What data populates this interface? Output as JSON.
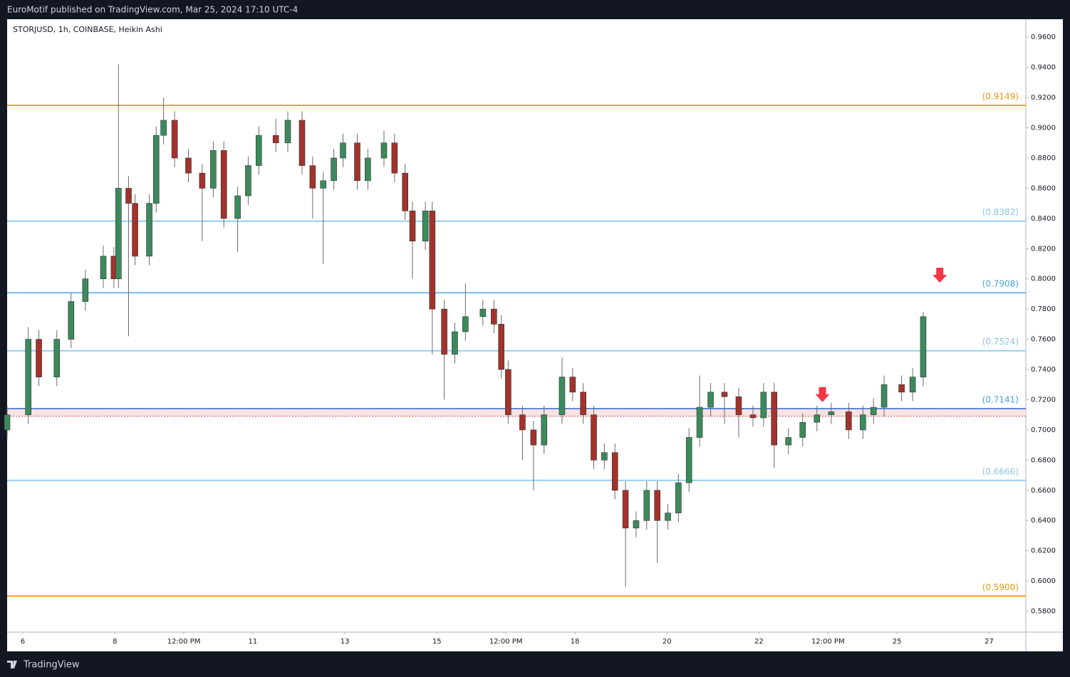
{
  "chart_data": {
    "type": "candlestick",
    "header": "EuroMotif published on TradingView.com, Mar 25, 2024 17:10 UTC-4",
    "title": "STORJUSD, 1h, COINBASE, Heikin Ashi",
    "brand": "TradingView",
    "up_color": "#3c8a5c",
    "down_color": "#a3322c",
    "xlim": [
      5.66,
      27.8
    ],
    "xticks": [
      6,
      8,
      {
        "value": 9.5,
        "label": "12:00 PM"
      },
      11,
      13,
      15,
      {
        "value": 16.5,
        "label": "12:00 PM"
      },
      18,
      20,
      22,
      {
        "value": 23.5,
        "label": "12:00 PM"
      },
      25,
      27
    ],
    "ylim": [
      0.5661,
      0.9719
    ],
    "yticks": [
      {
        "value": 0.96,
        "label": "0.9600"
      },
      {
        "value": 0.94,
        "label": "0.9400"
      },
      {
        "value": 0.92,
        "label": "0.9200"
      },
      {
        "value": 0.9,
        "label": "0.9000"
      },
      {
        "value": 0.88,
        "label": "0.8800"
      },
      {
        "value": 0.86,
        "label": "0.8600"
      },
      {
        "value": 0.84,
        "label": "0.8400"
      },
      {
        "value": 0.82,
        "label": "0.8200"
      },
      {
        "value": 0.8,
        "label": "0.8000"
      },
      {
        "value": 0.78,
        "label": "0.7800"
      },
      {
        "value": 0.76,
        "label": "0.7600"
      },
      {
        "value": 0.74,
        "label": "0.7400"
      },
      {
        "value": 0.72,
        "label": "0.7200"
      },
      {
        "value": 0.7,
        "label": "0.7000"
      },
      {
        "value": 0.68,
        "label": "0.6800"
      },
      {
        "value": 0.66,
        "label": "0.6600"
      },
      {
        "value": 0.64,
        "label": "0.6400"
      },
      {
        "value": 0.62,
        "label": "0.6200"
      },
      {
        "value": 0.6,
        "label": "0.6000"
      },
      {
        "value": 0.58,
        "label": "0.5800"
      }
    ],
    "grid": false,
    "levels": {
      "values": [
        0.9149,
        0.8382,
        0.7908,
        0.7524,
        0.7141,
        0.6666,
        0.59
      ],
      "value_labels": [
        "(0.9149)",
        "(0.8382)",
        "(0.7908)",
        "(0.7524)",
        "(0.7141)",
        "(0.6666)",
        "(0.5900)"
      ],
      "colors": [
        "#f59d0e",
        "#8ccbed",
        "#5fb3e8",
        "#8ccbed",
        "#4a7ad8",
        "#8ccbed",
        "#f59d0e"
      ],
      "label_colors": [
        "#e39a10",
        "#8fc4e6",
        "#4aa3e0",
        "#8fc4e6",
        "#4aa3e0",
        "#8fc4e6",
        "#e39a10"
      ]
    },
    "zone": {
      "values": [
        0.709,
        0.7141
      ],
      "color": "#f6d6d6",
      "edge_color": "#d04a3a"
    },
    "markers": {
      "x": [
        25.93,
        23.38
      ],
      "y": [
        0.797,
        0.718
      ],
      "color": "#f23645"
    },
    "x": [
      5.66,
      6.12,
      6.35,
      6.74,
      7.05,
      7.36,
      7.75,
      7.98,
      8.08,
      8.3,
      8.44,
      8.75,
      8.9,
      9.06,
      9.3,
      9.6,
      9.9,
      10.14,
      10.37,
      10.67,
      10.9,
      11.13,
      11.5,
      11.76,
      12.07,
      12.3,
      12.53,
      12.76,
      12.96,
      13.27,
      13.5,
      13.85,
      14.08,
      14.31,
      14.47,
      14.75,
      14.9,
      15.16,
      15.39,
      15.62,
      16.0,
      16.24,
      16.4,
      16.55,
      16.86,
      17.1,
      17.33,
      17.72,
      17.95,
      18.18,
      18.41,
      18.64,
      18.87,
      19.1,
      19.33,
      19.56,
      19.79,
      20.02,
      20.25,
      20.48,
      20.71,
      20.95,
      21.25,
      21.56,
      21.87,
      22.1,
      22.33,
      22.64,
      22.95,
      23.26,
      23.57,
      23.95,
      24.26,
      24.49,
      24.72,
      25.1,
      25.34,
      25.57
    ],
    "open": [
      0.7,
      0.71,
      0.76,
      0.735,
      0.76,
      0.785,
      0.8,
      0.815,
      0.8,
      0.86,
      0.85,
      0.815,
      0.85,
      0.895,
      0.905,
      0.88,
      0.87,
      0.86,
      0.885,
      0.84,
      0.855,
      0.875,
      0.895,
      0.89,
      0.905,
      0.875,
      0.86,
      0.865,
      0.88,
      0.89,
      0.865,
      0.88,
      0.89,
      0.87,
      0.845,
      0.825,
      0.845,
      0.78,
      0.75,
      0.765,
      0.775,
      0.78,
      0.77,
      0.74,
      0.71,
      0.7,
      0.69,
      0.71,
      0.735,
      0.725,
      0.71,
      0.68,
      0.685,
      0.66,
      0.635,
      0.64,
      0.66,
      0.64,
      0.645,
      0.665,
      0.695,
      0.715,
      0.725,
      0.722,
      0.71,
      0.708,
      0.725,
      0.69,
      0.695,
      0.705,
      0.71,
      0.712,
      0.7,
      0.71,
      0.715,
      0.73,
      0.725,
      0.735
    ],
    "high": [
      0.716,
      0.768,
      0.766,
      0.766,
      0.791,
      0.806,
      0.822,
      0.821,
      0.942,
      0.868,
      0.856,
      0.856,
      0.901,
      0.92,
      0.911,
      0.886,
      0.876,
      0.891,
      0.891,
      0.861,
      0.881,
      0.901,
      0.906,
      0.911,
      0.911,
      0.881,
      0.871,
      0.886,
      0.896,
      0.896,
      0.886,
      0.898,
      0.896,
      0.876,
      0.851,
      0.851,
      0.851,
      0.786,
      0.771,
      0.797,
      0.786,
      0.786,
      0.776,
      0.746,
      0.716,
      0.706,
      0.716,
      0.748,
      0.741,
      0.731,
      0.716,
      0.691,
      0.691,
      0.666,
      0.646,
      0.666,
      0.666,
      0.651,
      0.671,
      0.701,
      0.736,
      0.731,
      0.731,
      0.728,
      0.716,
      0.731,
      0.731,
      0.701,
      0.711,
      0.716,
      0.718,
      0.718,
      0.716,
      0.721,
      0.736,
      0.736,
      0.741,
      0.778
    ],
    "low": [
      0.694,
      0.704,
      0.729,
      0.729,
      0.754,
      0.779,
      0.794,
      0.794,
      0.794,
      0.762,
      0.809,
      0.809,
      0.844,
      0.889,
      0.874,
      0.864,
      0.825,
      0.854,
      0.834,
      0.818,
      0.849,
      0.869,
      0.884,
      0.884,
      0.869,
      0.84,
      0.81,
      0.859,
      0.874,
      0.859,
      0.859,
      0.874,
      0.864,
      0.839,
      0.8,
      0.819,
      0.75,
      0.72,
      0.744,
      0.759,
      0.769,
      0.764,
      0.734,
      0.704,
      0.68,
      0.66,
      0.684,
      0.704,
      0.719,
      0.704,
      0.674,
      0.674,
      0.654,
      0.596,
      0.629,
      0.634,
      0.612,
      0.634,
      0.639,
      0.659,
      0.689,
      0.709,
      0.704,
      0.695,
      0.702,
      0.702,
      0.675,
      0.684,
      0.689,
      0.699,
      0.704,
      0.694,
      0.694,
      0.704,
      0.709,
      0.719,
      0.719,
      0.729
    ],
    "close": [
      0.71,
      0.76,
      0.735,
      0.76,
      0.785,
      0.8,
      0.815,
      0.8,
      0.86,
      0.85,
      0.815,
      0.85,
      0.895,
      0.905,
      0.88,
      0.87,
      0.86,
      0.885,
      0.84,
      0.855,
      0.875,
      0.895,
      0.89,
      0.905,
      0.875,
      0.86,
      0.865,
      0.88,
      0.89,
      0.865,
      0.88,
      0.89,
      0.87,
      0.845,
      0.825,
      0.845,
      0.78,
      0.75,
      0.765,
      0.775,
      0.78,
      0.77,
      0.74,
      0.71,
      0.7,
      0.69,
      0.71,
      0.735,
      0.725,
      0.71,
      0.68,
      0.685,
      0.66,
      0.635,
      0.64,
      0.66,
      0.64,
      0.645,
      0.665,
      0.695,
      0.715,
      0.725,
      0.722,
      0.71,
      0.708,
      0.725,
      0.69,
      0.695,
      0.705,
      0.71,
      0.712,
      0.7,
      0.71,
      0.715,
      0.73,
      0.725,
      0.735,
      0.775
    ]
  }
}
